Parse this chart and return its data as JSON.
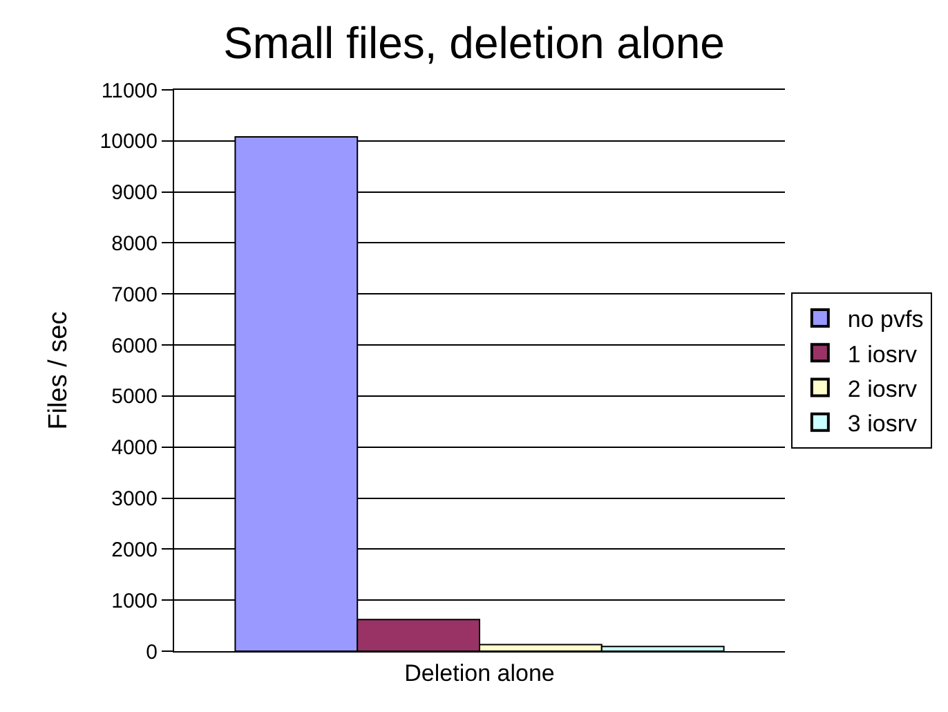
{
  "chart_data": {
    "type": "bar",
    "title": "Small files, deletion alone",
    "ylabel": "Files / sec",
    "categories": [
      "Deletion alone"
    ],
    "series": [
      {
        "name": "no pvfs",
        "color": "#9999ff",
        "values": [
          10080
        ]
      },
      {
        "name": "1 iosrv",
        "color": "#993366",
        "values": [
          620
        ]
      },
      {
        "name": "2 iosrv",
        "color": "#ffffcc",
        "values": [
          130
        ]
      },
      {
        "name": "3 iosrv",
        "color": "#ccffff",
        "values": [
          90
        ]
      }
    ],
    "ylim": [
      0,
      11000
    ],
    "yticks": [
      0,
      1000,
      2000,
      3000,
      4000,
      5000,
      6000,
      7000,
      8000,
      9000,
      10000,
      11000
    ],
    "grid": "y",
    "legend": "right"
  }
}
